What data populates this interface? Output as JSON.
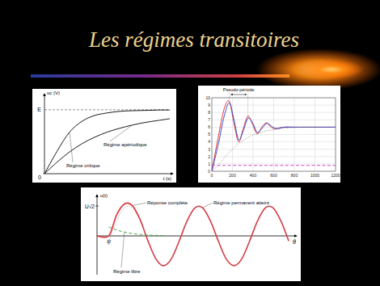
{
  "title": "Les régimes transitoires",
  "chart_data": [
    {
      "type": "line",
      "y_label": "uc (V)",
      "x_label": "t (s)",
      "x": [
        0,
        1,
        2,
        3,
        4,
        5,
        6,
        7,
        8,
        9,
        10
      ],
      "xlim": [
        0,
        10
      ],
      "ylim": [
        0,
        12
      ],
      "yticks": [
        0,
        {
          "value": 10,
          "label": "E"
        }
      ],
      "tick_labels": "y",
      "series": [
        {
          "name": "Régime critique",
          "color": "#000000",
          "values": [
            0,
            3.5,
            6.5,
            8.2,
            9.1,
            9.5,
            9.75,
            9.85,
            9.9,
            9.95,
            9.97
          ]
        },
        {
          "name": "Régime apériodique",
          "color": "#000000",
          "values": [
            0,
            1.8,
            3.4,
            4.7,
            5.7,
            6.5,
            7.1,
            7.6,
            8.0,
            8.3,
            8.6
          ]
        }
      ]
    },
    {
      "type": "line",
      "annotations": [
        "Pseudo-période"
      ],
      "x": [
        0,
        60,
        120,
        170,
        215,
        260,
        305,
        350,
        395,
        440,
        485,
        530,
        575,
        620,
        700,
        800,
        900,
        1000,
        1100,
        1200
      ],
      "xlim": [
        0,
        1200
      ],
      "ylim": [
        0,
        10
      ],
      "xticks": [
        0,
        200,
        400,
        600,
        800,
        1000,
        1200
      ],
      "yticks": [
        0,
        1,
        2,
        3,
        4,
        5,
        6,
        7,
        8,
        9,
        10
      ],
      "grid": true,
      "series": [
        {
          "color": "#e02020",
          "line_style": "solid",
          "values": [
            0,
            4.5,
            8.5,
            9.5,
            6.5,
            4.0,
            5.8,
            7.5,
            6.4,
            5.1,
            6.0,
            6.6,
            6.0,
            5.8,
            6.0,
            6.0,
            6.0,
            6.0,
            6.0,
            6.0
          ]
        },
        {
          "color": "#2040d0",
          "line_style": "solid",
          "values": [
            0,
            3.5,
            7.5,
            9.3,
            7.0,
            4.3,
            5.5,
            7.2,
            6.6,
            5.3,
            5.8,
            6.5,
            6.2,
            5.8,
            6.0,
            6.0,
            6.0,
            6.0,
            6.0,
            6.0
          ]
        },
        {
          "color": "#888888",
          "line_style": "dotted",
          "values": [
            0,
            0.8,
            1.8,
            2.6,
            3.2,
            3.8,
            4.2,
            4.6,
            4.9,
            5.1,
            5.3,
            5.5,
            5.6,
            5.7,
            5.85,
            5.95,
            6.0,
            6.0,
            6.0,
            6.0
          ]
        },
        {
          "color": "#cc33cc",
          "line_style": "dashed",
          "values": [
            0.8,
            0.8,
            0.8,
            0.8,
            0.8,
            0.8,
            0.8,
            0.8,
            0.8,
            0.8,
            0.8,
            0.8,
            0.8,
            0.8,
            0.8,
            0.8,
            0.8,
            0.8,
            0.8,
            0.8
          ]
        }
      ]
    },
    {
      "type": "line",
      "y_label": "u(t)",
      "x_label": "θ",
      "annotations": [
        "Régime permanent atteint",
        "ψ"
      ],
      "x": [
        0,
        0.6,
        1.0,
        1.4,
        1.8,
        2.2,
        2.6,
        3.0,
        3.4,
        3.8,
        4.2,
        4.6,
        5.0,
        5.4,
        5.8,
        6.2,
        6.6,
        7.0,
        7.4,
        7.8,
        8.2,
        8.6,
        9.0,
        9.4,
        9.8
      ],
      "xlim": [
        0,
        10
      ],
      "ylim": [
        -1.3,
        1.3
      ],
      "yticks": [
        {
          "value": 1,
          "label": "U√2"
        }
      ],
      "tick_labels": "y",
      "series": [
        {
          "name": "Réponse complète",
          "color": "#e0303a",
          "line_style": "solid",
          "values": [
            0,
            0,
            0.7,
            1.07,
            1.02,
            0.55,
            -0.16,
            -0.76,
            -1,
            -0.77,
            -0.17,
            0.5,
            0.94,
            0.94,
            0.5,
            -0.17,
            -0.77,
            -1,
            -0.77,
            -0.17,
            0.5,
            0.94,
            0.94,
            0.5,
            -0.17
          ]
        },
        {
          "name": "Régime libre",
          "color": "#40a040",
          "line_style": "dashed",
          "values": [
            null,
            0.3,
            0.2,
            0.13,
            0.08,
            0.05,
            0.03,
            0.02,
            0.01,
            null,
            null,
            null,
            null,
            null,
            null,
            null,
            null,
            null,
            null,
            null,
            null,
            null,
            null,
            null,
            null
          ]
        },
        {
          "color": "#909090",
          "line_style": "dotted",
          "values": [
            null,
            -0.17,
            0.5,
            0.94,
            0.94,
            0.5,
            -0.17,
            -0.77,
            -1,
            -0.77,
            -0.17,
            0.5,
            0.94,
            0.94,
            0.5,
            -0.17,
            -0.77,
            -1,
            -0.77,
            -0.17,
            0.5,
            0.94,
            0.94,
            0.5,
            -0.17
          ]
        }
      ]
    }
  ]
}
